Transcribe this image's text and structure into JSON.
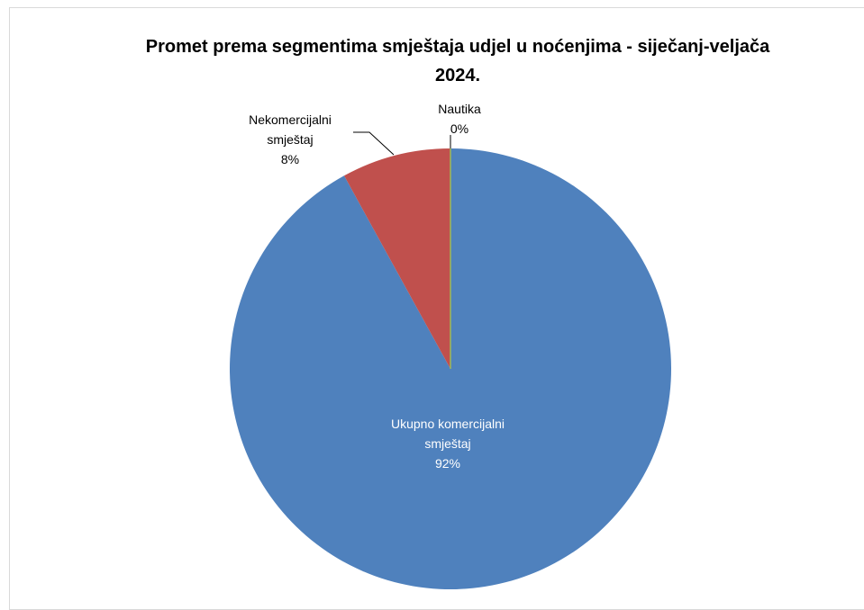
{
  "chart_data": {
    "type": "pie",
    "title": "Promet prema segmentima smještaja udjel u noćenjima - siječanj-veljača 2024.",
    "categories": [
      "Ukupno komercijalni smještaj",
      "Nekomercijalni smještaj",
      "Nautika"
    ],
    "values": [
      92,
      8,
      0
    ],
    "value_labels": [
      "92%",
      "8%",
      "0%"
    ],
    "colors": [
      "#4f81bd",
      "#c0504d",
      "#9bbb59"
    ]
  }
}
